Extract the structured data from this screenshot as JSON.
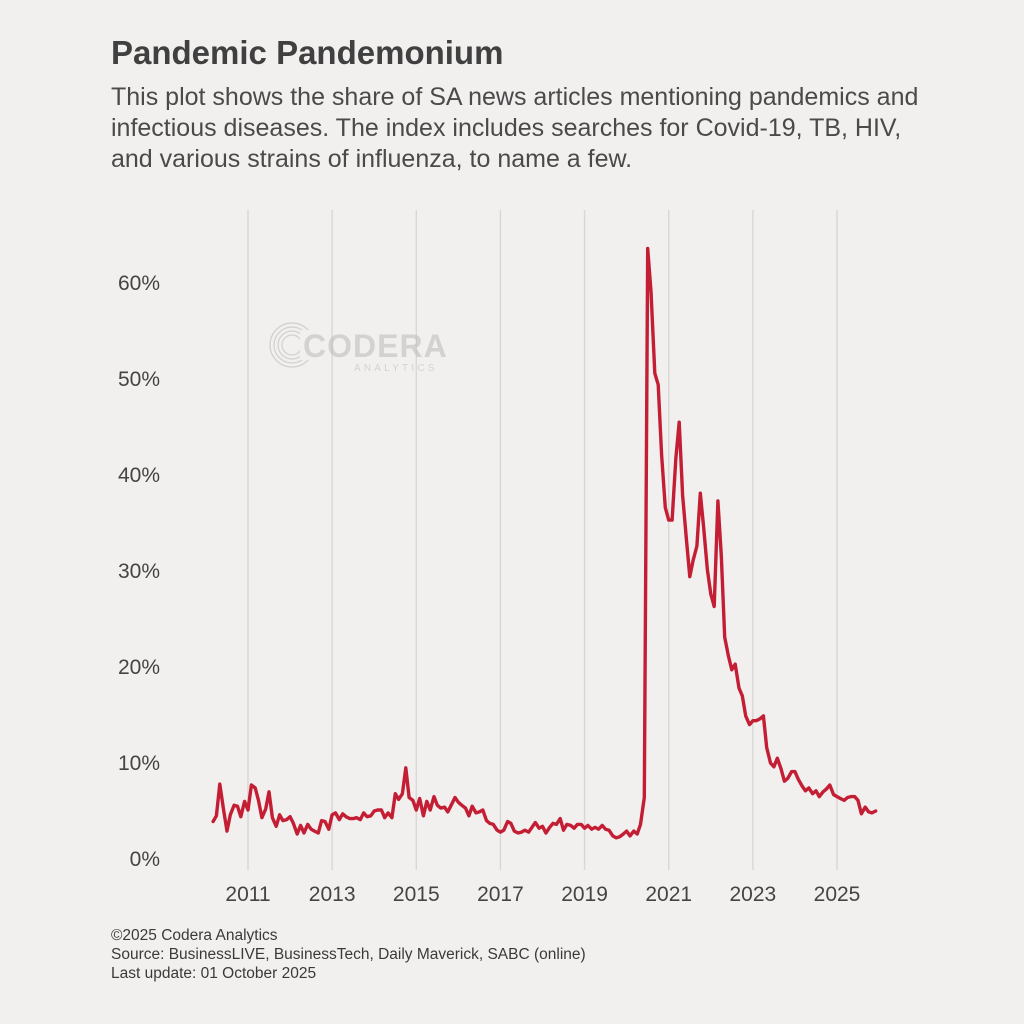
{
  "title": "Pandemic Pandemonium",
  "subtitle": "This plot shows the share of SA news articles mentioning pandemics and infectious diseases. The index includes searches for Covid-19, TB, HIV, and various strains of influenza, to name a few.",
  "watermark": {
    "brand": "CODERA",
    "tagline": "ANALYTICS"
  },
  "footer": {
    "copyright": "©2025 Codera Analytics",
    "source": "Source: BusinessLIVE, BusinessTech, Daily Maverick, SABC (online)",
    "updated": "Last update: 01 October 2025"
  },
  "colors": {
    "background": "#f2f0ee",
    "line": "#c41e35",
    "grid": "#d9d7d5",
    "text": "#404040"
  },
  "chart_data": {
    "type": "line",
    "title": "Pandemic Pandemonium",
    "xlabel": "",
    "ylabel": "",
    "xlim": [
      2010.0,
      2026.0
    ],
    "ylim": [
      0,
      65
    ],
    "x_ticks": [
      2011,
      2013,
      2015,
      2017,
      2019,
      2021,
      2023,
      2025
    ],
    "x_tick_labels": [
      "2011",
      "2013",
      "2015",
      "2017",
      "2019",
      "2021",
      "2023",
      "2025"
    ],
    "y_ticks": [
      0,
      10,
      20,
      30,
      40,
      50,
      60
    ],
    "y_tick_labels": [
      "0%",
      "10%",
      "20%",
      "30%",
      "40%",
      "50%",
      "60%"
    ],
    "grid": "vertical",
    "series": [
      {
        "name": "Share of SA news articles mentioning pandemics and infectious diseases (%)",
        "points": [
          [
            2010.17,
            3.8
          ],
          [
            2010.25,
            4.4
          ],
          [
            2010.33,
            7.7
          ],
          [
            2010.42,
            5.0
          ],
          [
            2010.5,
            2.8
          ],
          [
            2010.58,
            4.5
          ],
          [
            2010.67,
            5.5
          ],
          [
            2010.75,
            5.4
          ],
          [
            2010.83,
            4.3
          ],
          [
            2010.92,
            5.9
          ],
          [
            2011.0,
            5.0
          ],
          [
            2011.08,
            7.6
          ],
          [
            2011.17,
            7.3
          ],
          [
            2011.25,
            6.0
          ],
          [
            2011.33,
            4.2
          ],
          [
            2011.42,
            5.1
          ],
          [
            2011.5,
            6.9
          ],
          [
            2011.58,
            4.2
          ],
          [
            2011.67,
            3.3
          ],
          [
            2011.75,
            4.5
          ],
          [
            2011.83,
            3.9
          ],
          [
            2011.92,
            4.0
          ],
          [
            2012.0,
            4.3
          ],
          [
            2012.08,
            3.6
          ],
          [
            2012.17,
            2.5
          ],
          [
            2012.25,
            3.4
          ],
          [
            2012.33,
            2.6
          ],
          [
            2012.42,
            3.5
          ],
          [
            2012.5,
            3.0
          ],
          [
            2012.58,
            2.8
          ],
          [
            2012.67,
            2.6
          ],
          [
            2012.75,
            3.9
          ],
          [
            2012.83,
            3.8
          ],
          [
            2012.92,
            3.0
          ],
          [
            2013.0,
            4.5
          ],
          [
            2013.08,
            4.7
          ],
          [
            2013.17,
            4.0
          ],
          [
            2013.25,
            4.6
          ],
          [
            2013.33,
            4.3
          ],
          [
            2013.42,
            4.1
          ],
          [
            2013.5,
            4.1
          ],
          [
            2013.58,
            4.2
          ],
          [
            2013.67,
            4.0
          ],
          [
            2013.75,
            4.7
          ],
          [
            2013.83,
            4.3
          ],
          [
            2013.92,
            4.4
          ],
          [
            2014.0,
            4.9
          ],
          [
            2014.08,
            5.0
          ],
          [
            2014.17,
            5.0
          ],
          [
            2014.25,
            4.2
          ],
          [
            2014.33,
            4.7
          ],
          [
            2014.42,
            4.2
          ],
          [
            2014.5,
            6.7
          ],
          [
            2014.58,
            6.1
          ],
          [
            2014.67,
            6.7
          ],
          [
            2014.75,
            9.4
          ],
          [
            2014.83,
            6.3
          ],
          [
            2014.92,
            6.0
          ],
          [
            2015.0,
            5.0
          ],
          [
            2015.08,
            6.2
          ],
          [
            2015.17,
            4.4
          ],
          [
            2015.25,
            5.9
          ],
          [
            2015.33,
            5.0
          ],
          [
            2015.42,
            6.4
          ],
          [
            2015.5,
            5.5
          ],
          [
            2015.58,
            5.2
          ],
          [
            2015.67,
            5.3
          ],
          [
            2015.75,
            4.8
          ],
          [
            2015.83,
            5.5
          ],
          [
            2015.92,
            6.3
          ],
          [
            2016.0,
            5.8
          ],
          [
            2016.08,
            5.5
          ],
          [
            2016.17,
            5.2
          ],
          [
            2016.25,
            4.4
          ],
          [
            2016.33,
            5.4
          ],
          [
            2016.42,
            4.7
          ],
          [
            2016.5,
            4.8
          ],
          [
            2016.58,
            5.0
          ],
          [
            2016.67,
            3.9
          ],
          [
            2016.75,
            3.6
          ],
          [
            2016.83,
            3.5
          ],
          [
            2016.92,
            2.9
          ],
          [
            2017.0,
            2.7
          ],
          [
            2017.08,
            2.9
          ],
          [
            2017.17,
            3.8
          ],
          [
            2017.25,
            3.6
          ],
          [
            2017.33,
            2.8
          ],
          [
            2017.42,
            2.6
          ],
          [
            2017.5,
            2.7
          ],
          [
            2017.58,
            2.9
          ],
          [
            2017.67,
            2.7
          ],
          [
            2017.75,
            3.2
          ],
          [
            2017.83,
            3.7
          ],
          [
            2017.92,
            3.1
          ],
          [
            2018.0,
            3.3
          ],
          [
            2018.08,
            2.6
          ],
          [
            2018.17,
            3.2
          ],
          [
            2018.25,
            3.6
          ],
          [
            2018.33,
            3.5
          ],
          [
            2018.42,
            4.1
          ],
          [
            2018.5,
            2.9
          ],
          [
            2018.58,
            3.5
          ],
          [
            2018.67,
            3.4
          ],
          [
            2018.75,
            3.1
          ],
          [
            2018.83,
            3.5
          ],
          [
            2018.92,
            3.5
          ],
          [
            2019.0,
            3.1
          ],
          [
            2019.08,
            3.4
          ],
          [
            2019.17,
            3.0
          ],
          [
            2019.25,
            3.2
          ],
          [
            2019.33,
            3.0
          ],
          [
            2019.42,
            3.4
          ],
          [
            2019.5,
            3.0
          ],
          [
            2019.58,
            2.9
          ],
          [
            2019.67,
            2.3
          ],
          [
            2019.75,
            2.1
          ],
          [
            2019.83,
            2.2
          ],
          [
            2019.92,
            2.5
          ],
          [
            2020.0,
            2.8
          ],
          [
            2020.08,
            2.3
          ],
          [
            2020.17,
            2.8
          ],
          [
            2020.25,
            2.5
          ],
          [
            2020.33,
            3.5
          ],
          [
            2020.42,
            6.3
          ],
          [
            2020.5,
            63.5
          ],
          [
            2020.58,
            59.0
          ],
          [
            2020.67,
            50.5
          ],
          [
            2020.75,
            49.3
          ],
          [
            2020.83,
            42.0
          ],
          [
            2020.92,
            36.5
          ],
          [
            2021.0,
            35.2
          ],
          [
            2021.08,
            35.2
          ],
          [
            2021.17,
            41.7
          ],
          [
            2021.25,
            45.4
          ],
          [
            2021.33,
            37.8
          ],
          [
            2021.42,
            33.2
          ],
          [
            2021.5,
            29.3
          ],
          [
            2021.58,
            31.0
          ],
          [
            2021.67,
            32.5
          ],
          [
            2021.75,
            38.0
          ],
          [
            2021.83,
            34.5
          ],
          [
            2021.92,
            30.0
          ],
          [
            2022.0,
            27.5
          ],
          [
            2022.08,
            26.2
          ],
          [
            2022.17,
            37.2
          ],
          [
            2022.25,
            31.5
          ],
          [
            2022.33,
            23.0
          ],
          [
            2022.42,
            21.0
          ],
          [
            2022.5,
            19.6
          ],
          [
            2022.58,
            20.2
          ],
          [
            2022.67,
            17.7
          ],
          [
            2022.75,
            16.9
          ],
          [
            2022.83,
            14.8
          ],
          [
            2022.92,
            13.9
          ],
          [
            2023.0,
            14.3
          ],
          [
            2023.08,
            14.3
          ],
          [
            2023.17,
            14.5
          ],
          [
            2023.25,
            14.8
          ],
          [
            2023.33,
            11.5
          ],
          [
            2023.42,
            9.9
          ],
          [
            2023.5,
            9.5
          ],
          [
            2023.58,
            10.4
          ],
          [
            2023.67,
            9.3
          ],
          [
            2023.75,
            8.0
          ],
          [
            2023.83,
            8.3
          ],
          [
            2023.92,
            9.0
          ],
          [
            2024.0,
            9.0
          ],
          [
            2024.08,
            8.2
          ],
          [
            2024.17,
            7.5
          ],
          [
            2024.25,
            7.0
          ],
          [
            2024.33,
            7.3
          ],
          [
            2024.42,
            6.7
          ],
          [
            2024.5,
            7.0
          ],
          [
            2024.58,
            6.4
          ],
          [
            2024.67,
            6.9
          ],
          [
            2024.75,
            7.2
          ],
          [
            2024.83,
            7.6
          ],
          [
            2024.92,
            6.6
          ],
          [
            2025.0,
            6.4
          ],
          [
            2025.08,
            6.2
          ],
          [
            2025.17,
            6.0
          ],
          [
            2025.25,
            6.3
          ],
          [
            2025.33,
            6.4
          ],
          [
            2025.42,
            6.4
          ],
          [
            2025.5,
            6.0
          ],
          [
            2025.58,
            4.6
          ],
          [
            2025.67,
            5.3
          ],
          [
            2025.75,
            4.8
          ],
          [
            2025.83,
            4.7
          ],
          [
            2025.92,
            4.9
          ]
        ]
      }
    ]
  }
}
